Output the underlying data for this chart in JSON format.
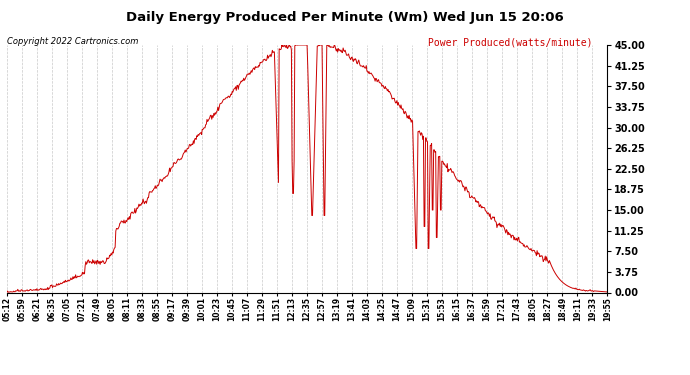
{
  "title": "Daily Energy Produced Per Minute (Wm) Wed Jun 15 20:06",
  "copyright": "Copyright 2022 Cartronics.com",
  "legend_label": "Power Produced(watts/minute)",
  "ylim": [
    0,
    45
  ],
  "yticks": [
    0,
    3.75,
    7.5,
    11.25,
    15.0,
    18.75,
    22.5,
    26.25,
    30.0,
    33.75,
    37.5,
    41.25,
    45.0
  ],
  "line_color": "#cc0000",
  "background_color": "#ffffff",
  "grid_color": "#bbbbbb",
  "title_color": "#000000",
  "copyright_color": "#000000",
  "legend_color": "#cc0000",
  "fig_width": 6.9,
  "fig_height": 3.75,
  "dpi": 100,
  "x_labels": [
    "05:12",
    "05:59",
    "06:21",
    "06:35",
    "07:05",
    "07:21",
    "07:49",
    "08:05",
    "08:11",
    "08:33",
    "08:55",
    "09:17",
    "09:39",
    "10:01",
    "10:23",
    "10:45",
    "11:07",
    "11:29",
    "11:51",
    "12:13",
    "12:35",
    "12:57",
    "13:19",
    "13:41",
    "14:03",
    "14:25",
    "14:47",
    "15:09",
    "15:31",
    "15:53",
    "16:15",
    "16:37",
    "16:59",
    "17:21",
    "17:43",
    "18:05",
    "18:27",
    "18:49",
    "19:11",
    "19:33",
    "19:55"
  ]
}
